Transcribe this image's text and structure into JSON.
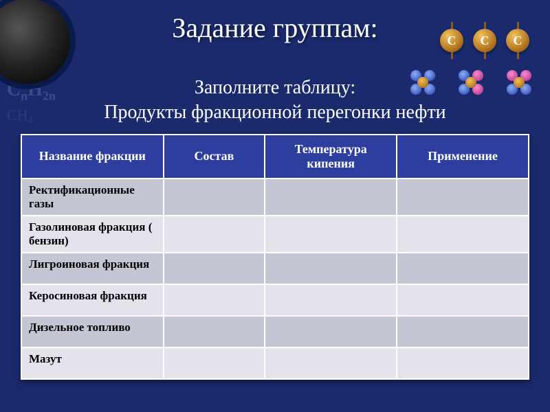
{
  "header": {
    "title": "Задание группам:",
    "badge_letter": "C"
  },
  "bg": {
    "formula1": "CₙH₂ₙ",
    "formula2": "CH₄"
  },
  "subtitle": {
    "line1": "Заполните таблицу:",
    "line2": "Продукты фракционной перегонки нефти"
  },
  "table": {
    "headers": {
      "c1": "Название фракции",
      "c2": "Состав",
      "c3": "Температура кипения",
      "c4": "Применение"
    },
    "rows": [
      {
        "c1": "Ректификационные газы",
        "c2": "",
        "c3": "",
        "c4": ""
      },
      {
        "c1": "Газолиновая фракция ( бензин)",
        "c2": "",
        "c3": "",
        "c4": ""
      },
      {
        "c1": "Лигроиновая фракция",
        "c2": "",
        "c3": "",
        "c4": ""
      },
      {
        "c1": "Керосиновая фракция",
        "c2": "",
        "c3": "",
        "c4": ""
      },
      {
        "c1": "Дизельное топливо",
        "c2": "",
        "c3": "",
        "c4": ""
      },
      {
        "c1": "Мазут",
        "c2": "",
        "c3": "",
        "c4": ""
      }
    ]
  },
  "colors": {
    "page_bg": "#1a2a6c",
    "header_bg": "#2d3e9e",
    "row_dark": "#c4c6d4",
    "row_light": "#e2e3eb",
    "text_white": "#ffffff",
    "text_black": "#000000"
  }
}
